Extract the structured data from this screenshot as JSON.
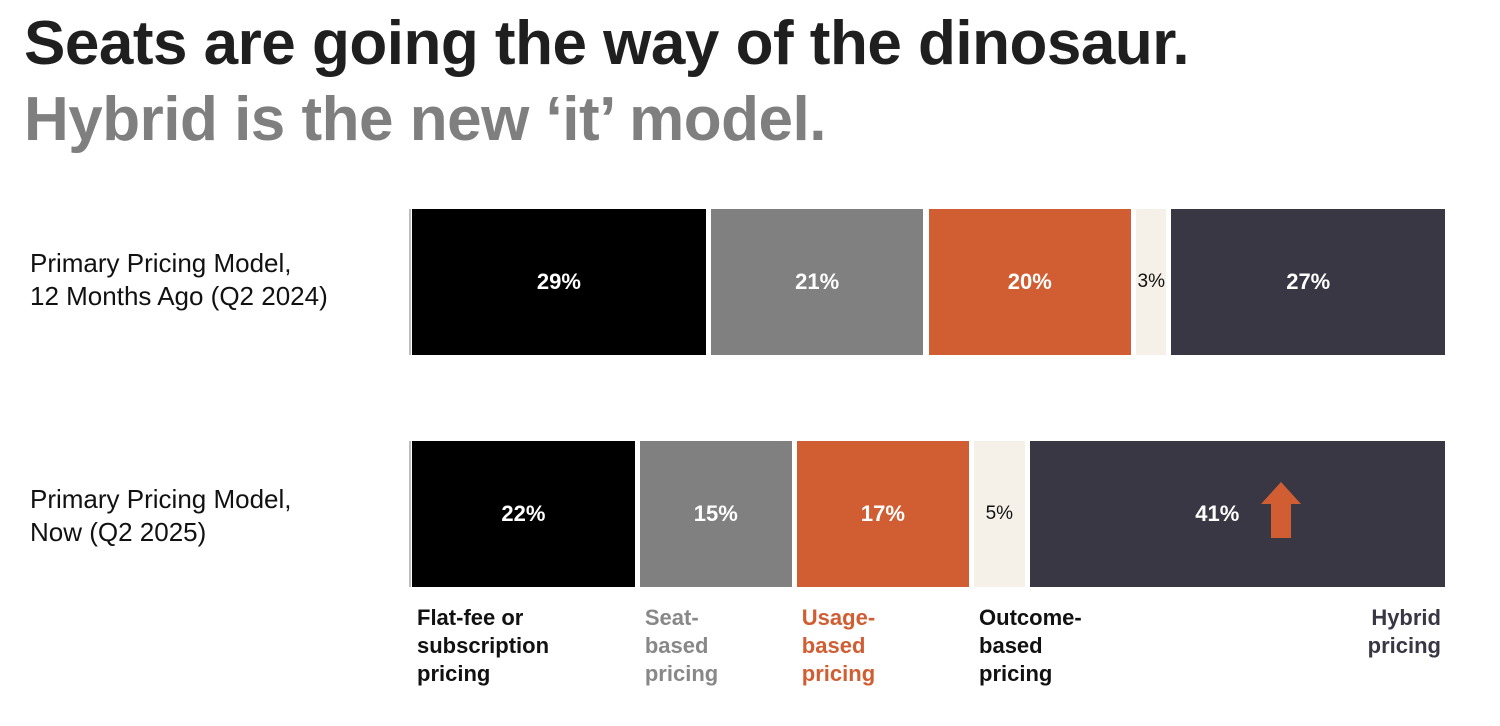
{
  "title": "Seats are going the way of the dinosaur.",
  "subtitle": "Hybrid is the new ‘it’ model.",
  "colors": {
    "flat_fee": "#000000",
    "seat_based": "#808080",
    "usage_based": "#D15E33",
    "outcome_based": "#F6F1E8",
    "hybrid": "#3A3745",
    "arrow": "#D15E33"
  },
  "chart_data": {
    "type": "bar",
    "orientation": "horizontal",
    "stacked": true,
    "unit": "%",
    "categories": [
      {
        "lines": [
          "Primary Pricing Model,",
          "12 Months Ago (Q2 2024)"
        ]
      },
      {
        "lines": [
          "Primary Pricing Model,",
          "Now (Q2 2025)"
        ]
      }
    ],
    "series": [
      {
        "key": "flat_fee",
        "name_lines": [
          "Flat-fee or",
          "subscription",
          "pricing"
        ],
        "values": [
          29,
          22
        ],
        "labels": [
          "29%",
          "22%"
        ]
      },
      {
        "key": "seat_based",
        "name_lines": [
          "Seat-",
          "based",
          "pricing"
        ],
        "values": [
          21,
          15
        ],
        "labels": [
          "21%",
          "15%"
        ]
      },
      {
        "key": "usage_based",
        "name_lines": [
          "Usage-",
          "based",
          "pricing"
        ],
        "values": [
          20,
          17
        ],
        "labels": [
          "20%",
          "17%"
        ]
      },
      {
        "key": "outcome_based",
        "name_lines": [
          "Outcome-",
          "based",
          "pricing"
        ],
        "values": [
          3,
          5
        ],
        "labels": [
          "3%",
          "5%"
        ]
      },
      {
        "key": "hybrid",
        "name_lines": [
          "Hybrid",
          "pricing"
        ],
        "values": [
          27,
          41
        ],
        "labels": [
          "27%",
          "41%"
        ]
      }
    ],
    "annotation": {
      "type": "up-arrow-icon",
      "series": "hybrid",
      "category_index": 1
    }
  }
}
